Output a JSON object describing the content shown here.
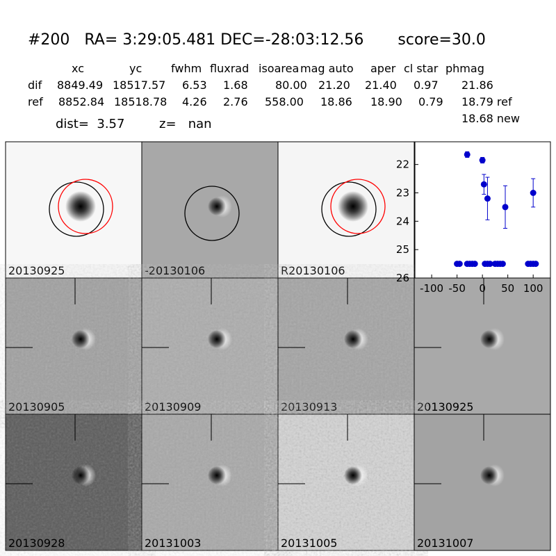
{
  "header": {
    "title": "#200   RA= 3:29:05.481 DEC=-28:03:12.56       score=30.0",
    "columns": [
      "xc",
      "yc",
      "fwhm",
      "fluxrad",
      "isoarea",
      "mag auto",
      "aper",
      "cl star",
      "phmag"
    ],
    "rows": [
      [
        "dif",
        "8849.49",
        "18517.57",
        "6.53",
        "1.68",
        "80.00",
        "21.20",
        "21.40",
        "0.97",
        "21.86"
      ],
      [
        "ref",
        "8852.84",
        "18518.78",
        "4.26",
        "2.76",
        "558.00",
        "18.86",
        "18.90",
        "0.79",
        "18.79 ref"
      ]
    ],
    "extra": "18.68 new",
    "dist": "dist=  3.57",
    "z": "z=   nan"
  },
  "panels": [
    "20130925",
    "-20130106",
    "R20130106",
    "20130905",
    "20130909",
    "20130913",
    "20130925",
    "20130928",
    "20131003",
    "20131005",
    "20131007"
  ],
  "chart_data": {
    "type": "scatter",
    "color": "#0000cc",
    "x": [
      -30,
      0,
      3,
      10,
      45,
      100,
      -50,
      -45,
      -30,
      -25,
      -20,
      -15,
      5,
      10,
      15,
      25,
      30,
      35,
      40,
      90,
      95,
      100,
      105
    ],
    "values": [
      21.65,
      21.85,
      22.7,
      23.2,
      23.5,
      23.0,
      25.5,
      25.5,
      25.5,
      25.5,
      25.5,
      25.5,
      25.5,
      25.5,
      25.5,
      25.5,
      25.5,
      25.5,
      25.5,
      25.5,
      25.5,
      25.5,
      25.5
    ],
    "errors": [
      0.1,
      0.1,
      0.35,
      0.75,
      0.75,
      0.5,
      null,
      null,
      null,
      null,
      null,
      null,
      null,
      null,
      null,
      null,
      null,
      null,
      null,
      null,
      null,
      null,
      null
    ],
    "xlim": [
      -133,
      134
    ],
    "ylim": [
      26,
      21.2
    ],
    "xticks": [
      -100,
      -50,
      0,
      50,
      100
    ],
    "yticks": [
      22,
      23,
      24,
      25,
      26
    ]
  }
}
